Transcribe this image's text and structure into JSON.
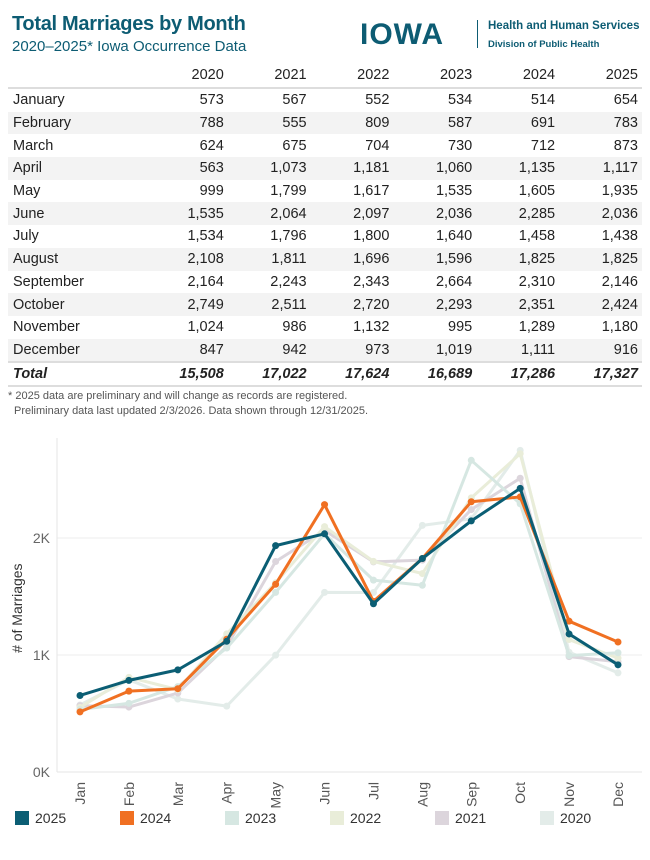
{
  "header": {
    "title": "Total Marriages by Month",
    "subtitle": "2020–2025* Iowa Occurrence Data"
  },
  "logo": {
    "word": "IOWA",
    "line1": "Health and Human Services",
    "line2": "Division of Public Health"
  },
  "table": {
    "columns": [
      "2020",
      "2021",
      "2022",
      "2023",
      "2024",
      "2025"
    ],
    "rows": [
      {
        "label": "January",
        "values": [
          "573",
          "567",
          "552",
          "534",
          "514",
          "654"
        ]
      },
      {
        "label": "February",
        "values": [
          "788",
          "555",
          "809",
          "587",
          "691",
          "783"
        ]
      },
      {
        "label": "March",
        "values": [
          "624",
          "675",
          "704",
          "730",
          "712",
          "873"
        ]
      },
      {
        "label": "April",
        "values": [
          "563",
          "1,073",
          "1,181",
          "1,060",
          "1,135",
          "1,117"
        ]
      },
      {
        "label": "May",
        "values": [
          "999",
          "1,799",
          "1,617",
          "1,535",
          "1,605",
          "1,935"
        ]
      },
      {
        "label": "June",
        "values": [
          "1,535",
          "2,064",
          "2,097",
          "2,036",
          "2,285",
          "2,036"
        ]
      },
      {
        "label": "July",
        "values": [
          "1,534",
          "1,796",
          "1,800",
          "1,640",
          "1,458",
          "1,438"
        ]
      },
      {
        "label": "August",
        "values": [
          "2,108",
          "1,811",
          "1,696",
          "1,596",
          "1,825",
          "1,825"
        ]
      },
      {
        "label": "September",
        "values": [
          "2,164",
          "2,243",
          "2,343",
          "2,664",
          "2,310",
          "2,146"
        ]
      },
      {
        "label": "October",
        "values": [
          "2,749",
          "2,511",
          "2,720",
          "2,293",
          "2,351",
          "2,424"
        ]
      },
      {
        "label": "November",
        "values": [
          "1,024",
          "986",
          "1,132",
          "995",
          "1,289",
          "1,180"
        ]
      },
      {
        "label": "December",
        "values": [
          "847",
          "942",
          "973",
          "1,019",
          "1,111",
          "916"
        ]
      }
    ],
    "total": {
      "label": "Total",
      "values": [
        "15,508",
        "17,022",
        "17,624",
        "16,689",
        "17,286",
        "17,327"
      ]
    }
  },
  "notes": [
    "* 2025 data are preliminary and will change as records are registered.",
    "Preliminary data last updated 2/3/2026. Data shown through 12/31/2025."
  ],
  "chart_data": {
    "type": "line",
    "ylabel": "# of Marriages",
    "xlabel": "",
    "categories": [
      "Jan",
      "Feb",
      "Mar",
      "Apr",
      "May",
      "Jun",
      "Jul",
      "Aug",
      "Sep",
      "Oct",
      "Nov",
      "Dec"
    ],
    "yticks": [
      "0K",
      "1K",
      "2K"
    ],
    "ylim": [
      0,
      2840
    ],
    "grid": true,
    "legend": "bottom",
    "series": [
      {
        "name": "2020",
        "color": "#e3ece9",
        "values": [
          573,
          788,
          624,
          563,
          999,
          1535,
          1534,
          2108,
          2164,
          2749,
          1024,
          847
        ]
      },
      {
        "name": "2021",
        "color": "#dcd5dc",
        "values": [
          567,
          555,
          675,
          1073,
          1799,
          2064,
          1796,
          1811,
          2243,
          2511,
          986,
          942
        ]
      },
      {
        "name": "2022",
        "color": "#e9edd9",
        "values": [
          552,
          809,
          704,
          1181,
          1617,
          2097,
          1800,
          1696,
          2343,
          2720,
          1132,
          973
        ]
      },
      {
        "name": "2023",
        "color": "#d6e7e2",
        "values": [
          534,
          587,
          730,
          1060,
          1535,
          2036,
          1640,
          1596,
          2664,
          2293,
          995,
          1019
        ]
      },
      {
        "name": "2024",
        "color": "#f07022",
        "values": [
          514,
          691,
          712,
          1135,
          1605,
          2285,
          1458,
          1825,
          2310,
          2351,
          1289,
          1111
        ]
      },
      {
        "name": "2025",
        "color": "#0b5e74",
        "values": [
          654,
          783,
          873,
          1117,
          1935,
          2036,
          1438,
          1825,
          2146,
          2424,
          1180,
          916
        ]
      }
    ],
    "legend_order": [
      "2025",
      "2024",
      "2023",
      "2022",
      "2021",
      "2020"
    ]
  }
}
